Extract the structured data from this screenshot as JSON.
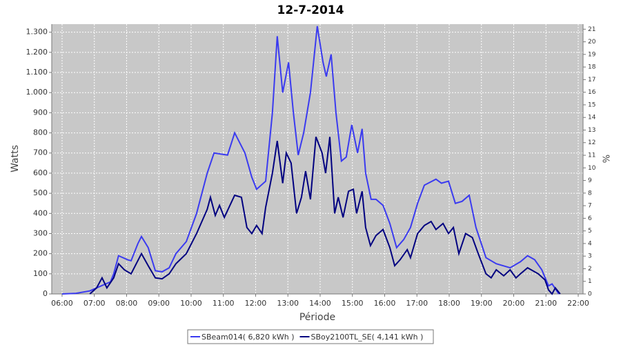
{
  "chart_data": {
    "type": "line",
    "title": "12-7-2014",
    "x_label": "Période",
    "y_label": "Watts",
    "y2_label": "%",
    "xlim": [
      5.68,
      22.15
    ],
    "xticks": [
      {
        "value": 6,
        "label": "06:00"
      },
      {
        "value": 7,
        "label": "07:00"
      },
      {
        "value": 8,
        "label": "08:00"
      },
      {
        "value": 9,
        "label": "09:00"
      },
      {
        "value": 10,
        "label": "10:00"
      },
      {
        "value": 11,
        "label": "11:00"
      },
      {
        "value": 12,
        "label": "12:00"
      },
      {
        "value": 13,
        "label": "13:00"
      },
      {
        "value": 14,
        "label": "14:00"
      },
      {
        "value": 15,
        "label": "15:00"
      },
      {
        "value": 16,
        "label": "16:00"
      },
      {
        "value": 17,
        "label": "17:00"
      },
      {
        "value": 18,
        "label": "18:00"
      },
      {
        "value": 19,
        "label": "19:00"
      },
      {
        "value": 20,
        "label": "20:00"
      },
      {
        "value": 21,
        "label": "21:00"
      },
      {
        "value": 22,
        "label": "22:00"
      }
    ],
    "ylim": [
      0,
      1340
    ],
    "yticks": [
      0,
      100,
      200,
      300,
      400,
      500,
      600,
      700,
      800,
      900,
      {
        "value": 1000,
        "label": "1.000"
      },
      {
        "value": 1100,
        "label": "1.100"
      },
      {
        "value": 1200,
        "label": "1.200"
      },
      {
        "value": 1300,
        "label": "1.300"
      }
    ],
    "y2lim": [
      0,
      21.4
    ],
    "y2ticks": [
      0,
      1,
      2,
      3,
      4,
      5,
      6,
      7,
      8,
      9,
      10,
      11,
      12,
      13,
      14,
      15,
      16,
      17,
      18,
      19,
      20,
      21
    ],
    "grid": true,
    "legend": "bottom",
    "series": [
      {
        "name": "SBeam014( 6,820 kWh )",
        "color": "#3a3af0",
        "x": [
          6.0,
          6.43,
          6.86,
          7.28,
          7.5,
          7.6,
          7.75,
          8.03,
          8.14,
          8.35,
          8.46,
          8.67,
          8.89,
          9.1,
          9.32,
          9.53,
          9.85,
          10.17,
          10.5,
          10.71,
          11.13,
          11.35,
          11.67,
          11.88,
          12.03,
          12.31,
          12.52,
          12.67,
          12.84,
          13.02,
          13.17,
          13.32,
          13.49,
          13.7,
          13.91,
          14.09,
          14.19,
          14.34,
          14.49,
          14.66,
          14.81,
          14.98,
          15.16,
          15.3,
          15.41,
          15.58,
          15.73,
          15.95,
          16.16,
          16.37,
          16.59,
          16.8,
          17.02,
          17.23,
          17.59,
          17.76,
          17.98,
          18.19,
          18.4,
          18.62,
          18.83,
          19.14,
          19.46,
          19.89,
          20.21,
          20.43,
          20.65,
          20.87,
          21.08,
          21.19,
          21.4
        ],
        "values": [
          0,
          3,
          15,
          45,
          60,
          100,
          190,
          170,
          165,
          250,
          285,
          230,
          115,
          110,
          130,
          200,
          260,
          400,
          600,
          700,
          690,
          800,
          700,
          580,
          520,
          560,
          900,
          1280,
          1000,
          1150,
          900,
          690,
          800,
          1000,
          1330,
          1150,
          1080,
          1190,
          900,
          660,
          680,
          840,
          700,
          820,
          600,
          470,
          470,
          440,
          350,
          230,
          270,
          330,
          450,
          540,
          570,
          550,
          560,
          450,
          460,
          490,
          330,
          180,
          150,
          130,
          160,
          190,
          170,
          120,
          40,
          50,
          0
        ]
      },
      {
        "name": "SBoy2100TL_SE( 4,141 kWh )",
        "color": "#000080",
        "x": [
          6.86,
          7.07,
          7.24,
          7.39,
          7.6,
          7.75,
          7.93,
          8.14,
          8.46,
          8.67,
          8.89,
          9.1,
          9.32,
          9.53,
          9.85,
          10.17,
          10.5,
          10.6,
          10.75,
          10.88,
          11.03,
          11.35,
          11.56,
          11.73,
          11.88,
          12.03,
          12.2,
          12.31,
          12.52,
          12.67,
          12.84,
          12.95,
          13.1,
          13.27,
          13.42,
          13.55,
          13.7,
          13.87,
          14.06,
          14.17,
          14.3,
          14.45,
          14.56,
          14.71,
          14.88,
          15.03,
          15.13,
          15.3,
          15.41,
          15.56,
          15.73,
          15.95,
          16.16,
          16.31,
          16.48,
          16.7,
          16.8,
          17.02,
          17.23,
          17.44,
          17.59,
          17.81,
          17.98,
          18.13,
          18.3,
          18.51,
          18.72,
          18.9,
          19.14,
          19.3,
          19.46,
          19.69,
          19.89,
          20.07,
          20.21,
          20.43,
          20.76,
          20.97,
          21.08,
          21.19,
          21.29,
          21.44
        ],
        "values": [
          0,
          30,
          80,
          30,
          80,
          150,
          120,
          100,
          200,
          140,
          80,
          75,
          100,
          150,
          200,
          300,
          420,
          480,
          390,
          440,
          380,
          490,
          480,
          330,
          300,
          340,
          300,
          430,
          600,
          760,
          550,
          700,
          650,
          400,
          480,
          610,
          470,
          780,
          700,
          600,
          780,
          400,
          480,
          380,
          510,
          520,
          400,
          510,
          330,
          240,
          290,
          320,
          230,
          140,
          170,
          220,
          180,
          300,
          340,
          360,
          320,
          350,
          300,
          330,
          200,
          300,
          280,
          200,
          100,
          80,
          120,
          90,
          120,
          80,
          100,
          130,
          100,
          70,
          20,
          0,
          30,
          0
        ]
      }
    ]
  }
}
